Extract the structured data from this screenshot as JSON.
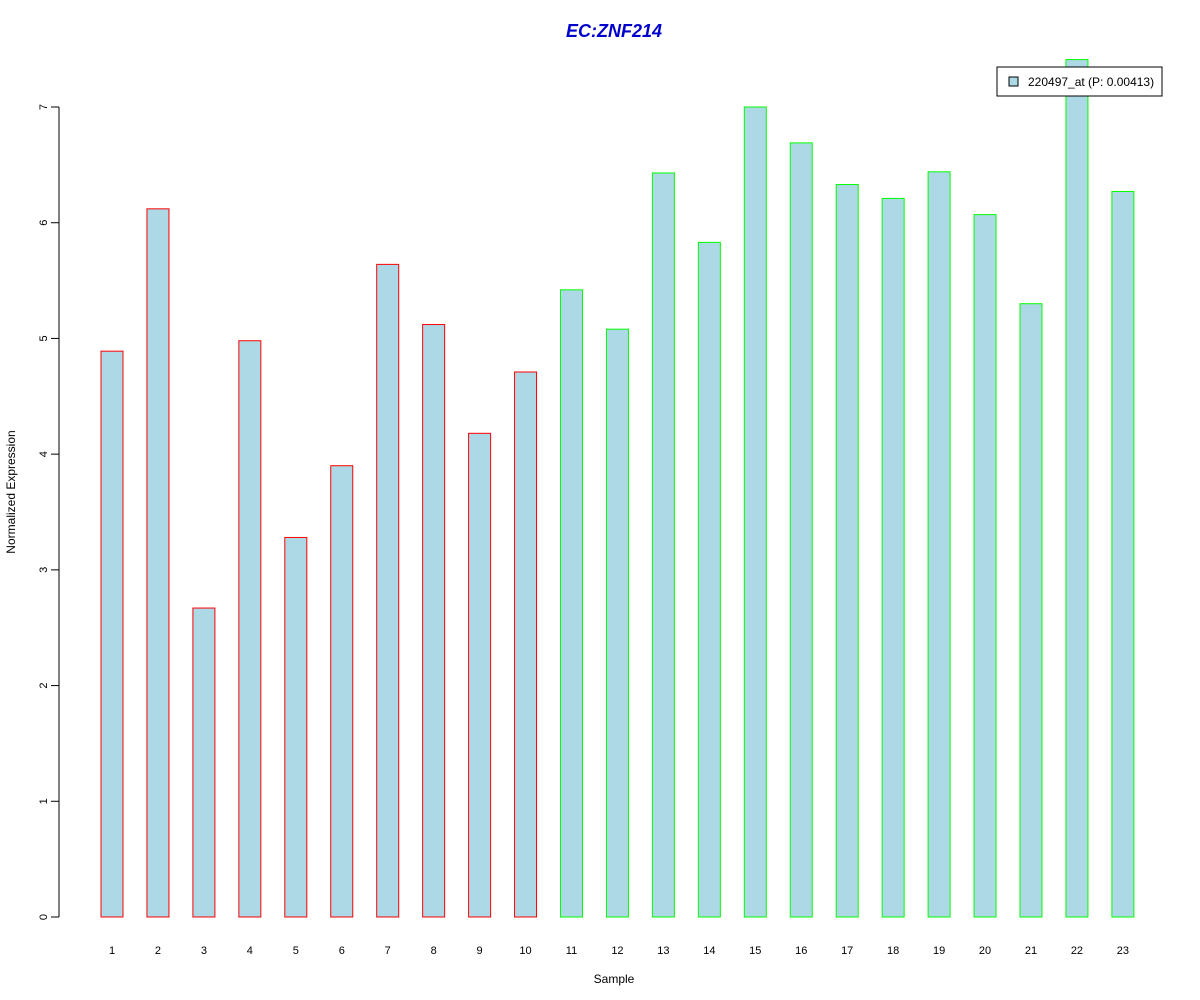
{
  "chart_data": {
    "type": "bar",
    "title": "EC:ZNF214",
    "xlabel": "Sample",
    "ylabel": "Normalized Expression",
    "categories": [
      "1",
      "2",
      "3",
      "4",
      "5",
      "6",
      "7",
      "8",
      "9",
      "10",
      "11",
      "12",
      "13",
      "14",
      "15",
      "16",
      "17",
      "18",
      "19",
      "20",
      "21",
      "22",
      "23"
    ],
    "series": [
      {
        "name": "220497_at (P: 0.00413)",
        "values": [
          4.89,
          6.12,
          2.67,
          4.98,
          3.28,
          3.9,
          5.64,
          5.12,
          4.18,
          4.71,
          5.42,
          5.08,
          6.43,
          5.83,
          7.0,
          6.69,
          6.33,
          6.21,
          6.44,
          6.07,
          5.3,
          7.41,
          6.27
        ]
      }
    ],
    "groups": [
      {
        "samples": [
          1,
          2,
          3,
          4,
          5,
          6,
          7,
          8,
          9,
          10
        ],
        "border_color": "#ff0000"
      },
      {
        "samples": [
          11,
          12,
          13,
          14,
          15,
          16,
          17,
          18,
          19,
          20,
          21,
          22,
          23
        ],
        "border_color": "#00ff00"
      }
    ],
    "ylim": [
      0,
      7
    ],
    "yticks": [
      0,
      1,
      2,
      3,
      4,
      5,
      6,
      7
    ],
    "legend_position": "top-right",
    "grid": false,
    "colors": {
      "bar_fill": "#add8e6",
      "title": "#0000cc"
    }
  }
}
